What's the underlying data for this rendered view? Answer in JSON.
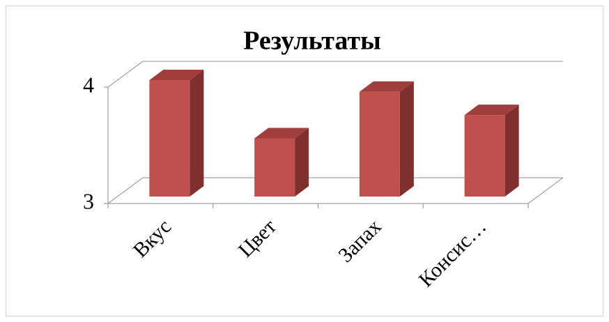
{
  "chart_data": {
    "type": "bar",
    "title": "Результаты",
    "categories": [
      "Вкус",
      "Цвет",
      "Запах",
      "Консис…"
    ],
    "values": [
      4.0,
      3.5,
      3.9,
      3.7
    ],
    "color": "#c0504d",
    "ylim": [
      3,
      4
    ],
    "yticks": [
      3,
      4
    ],
    "grid": true
  }
}
